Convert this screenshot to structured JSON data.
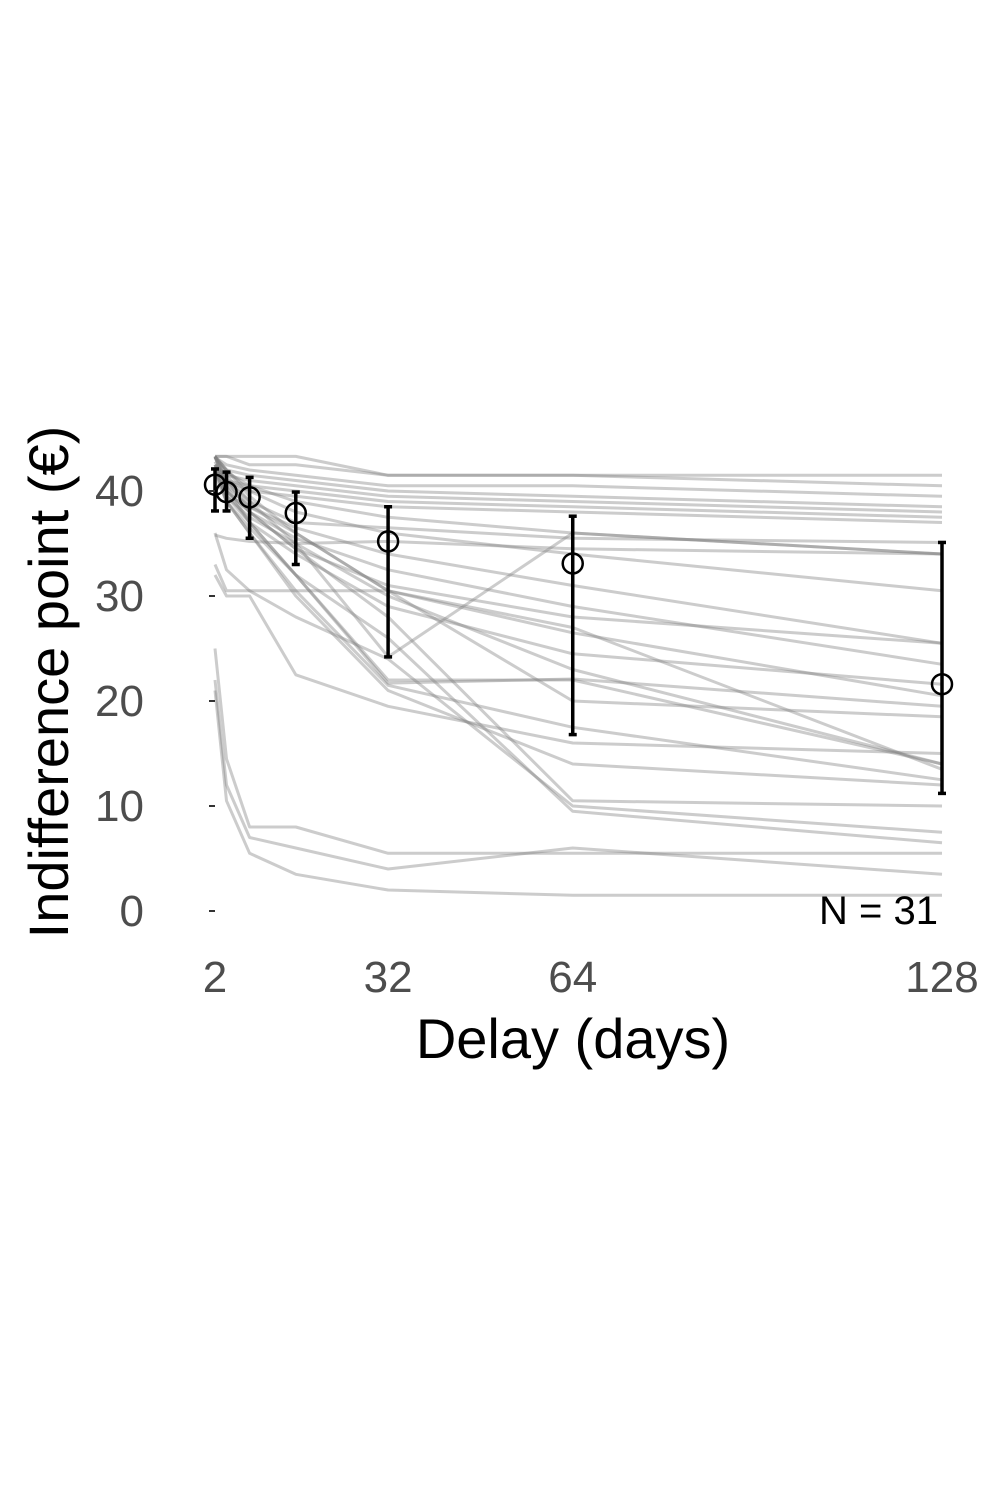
{
  "chart_data": {
    "type": "line",
    "xlabel": "Delay (days)",
    "ylabel": "Indifference point (€)",
    "x_ticks": [
      2,
      32,
      64,
      128
    ],
    "y_ticks": [
      0,
      10,
      20,
      30,
      40
    ],
    "xlim": [
      2,
      128
    ],
    "ylim": [
      0,
      45
    ],
    "annotation": "N = 31",
    "grid": false,
    "legend": "none",
    "individual_color": "#808080",
    "mean_color": "#000000",
    "x": [
      2,
      4,
      8,
      16,
      32,
      64,
      128
    ],
    "mean": {
      "y": [
        40.6,
        39.9,
        39.4,
        37.9,
        35.2,
        33.1,
        21.6
      ],
      "err_low": [
        38.1,
        38.1,
        35.5,
        33.0,
        24.2,
        16.8,
        11.2
      ],
      "err_high": [
        42.1,
        41.8,
        41.3,
        39.9,
        38.5,
        37.6,
        35.1
      ]
    },
    "individual_series": [
      [
        43.3,
        43.3,
        43.3,
        43.3,
        41.5,
        41.5,
        41.5
      ],
      [
        43.3,
        43.3,
        42.5,
        42.5,
        41.5,
        41.5,
        40.5
      ],
      [
        43.2,
        42.5,
        42.0,
        41.5,
        40.5,
        40.5,
        39.5
      ],
      [
        43.2,
        42.0,
        41.5,
        41.0,
        40.0,
        39.5,
        38.5
      ],
      [
        42.5,
        41.5,
        41.0,
        40.5,
        39.5,
        39.0,
        38.0
      ],
      [
        42.0,
        41.0,
        40.5,
        40.0,
        39.0,
        38.5,
        37.5
      ],
      [
        42.0,
        41.0,
        40.0,
        39.5,
        38.5,
        38.0,
        37.0
      ],
      [
        43.2,
        41.8,
        40.5,
        39.0,
        37.5,
        36.0,
        34.0
      ],
      [
        43.2,
        41.0,
        39.0,
        37.0,
        36.5,
        35.5,
        35.1
      ],
      [
        35.8,
        35.5,
        35.2,
        35.0,
        35.2,
        34.5,
        34.0
      ],
      [
        43.3,
        42.0,
        40.0,
        38.0,
        36.0,
        34.0,
        30.5
      ],
      [
        42.8,
        40.5,
        38.5,
        36.5,
        34.0,
        31.0,
        25.5
      ],
      [
        42.5,
        40.0,
        38.0,
        35.5,
        32.5,
        29.0,
        23.5
      ],
      [
        42.5,
        41.0,
        38.5,
        36.0,
        30.5,
        26.5,
        20.5
      ],
      [
        42.0,
        39.5,
        37.0,
        34.0,
        29.0,
        24.5,
        21.6
      ],
      [
        41.8,
        39.5,
        37.5,
        35.0,
        24.2,
        36.0,
        34.0
      ],
      [
        41.5,
        39.0,
        36.5,
        32.0,
        21.7,
        22.1,
        19.5
      ],
      [
        43.3,
        40.0,
        37.0,
        32.0,
        22.0,
        22.0,
        14.0
      ],
      [
        42.0,
        39.0,
        36.0,
        30.5,
        21.5,
        17.5,
        12.5
      ],
      [
        42.5,
        39.0,
        36.0,
        30.0,
        21.0,
        14.0,
        12.0
      ],
      [
        43.3,
        41.0,
        38.0,
        34.5,
        28.0,
        10.5,
        10.0
      ],
      [
        43.3,
        40.5,
        37.0,
        32.0,
        26.0,
        9.5,
        6.5
      ],
      [
        33.0,
        30.5,
        30.5,
        30.5,
        30.5,
        20.0,
        18.5
      ],
      [
        32.0,
        30.0,
        30.0,
        22.5,
        19.5,
        16.0,
        15.0
      ],
      [
        36.0,
        32.5,
        30.5,
        28.0,
        24.0,
        10.0,
        7.5
      ],
      [
        25.0,
        14.5,
        8.0,
        8.0,
        5.5,
        5.5,
        5.5
      ],
      [
        22.0,
        12.0,
        7.0,
        6.0,
        4.0,
        6.0,
        3.5
      ],
      [
        21.0,
        10.5,
        5.5,
        3.5,
        2.0,
        1.5,
        1.5
      ],
      [
        43.3,
        42.0,
        39.5,
        36.0,
        30.5,
        27.0,
        13.5
      ],
      [
        43.3,
        41.5,
        39.0,
        35.0,
        30.0,
        23.0,
        14.0
      ],
      [
        42.0,
        40.0,
        38.0,
        34.5,
        31.0,
        28.0,
        25.5
      ]
    ]
  }
}
